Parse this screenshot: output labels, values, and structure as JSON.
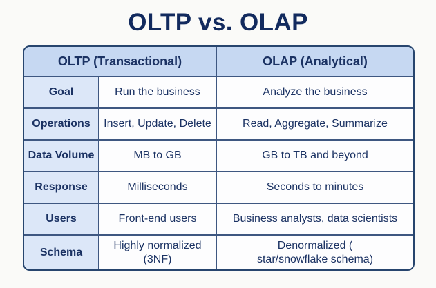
{
  "title": "OLTP vs. OLAP",
  "chart_data": {
    "type": "table",
    "title": "OLTP vs. OLAP",
    "columns": [
      "",
      "OLTP (Transactional)",
      "OLAP (Analytical)"
    ],
    "rows": [
      [
        "Goal",
        "Run the business",
        "Analyze the business"
      ],
      [
        "Operations",
        "Insert, Update, Delete",
        "Read, Aggregate, Summarize"
      ],
      [
        "Data Volume",
        "MB to GB",
        "GB to TB and beyond"
      ],
      [
        "Response",
        "Milliseconds",
        "Seconds to minutes"
      ],
      [
        "Users",
        "Front-end users",
        "Business analysts, data scientists"
      ],
      [
        "Schema",
        "Highly normalized (3NF)",
        "Denormalized (\nstar/snowflake schema)"
      ]
    ]
  },
  "colors": {
    "background": "#fafaf8",
    "title_text": "#122a5e",
    "text": "#1b3263",
    "outer_border": "#27456e",
    "grid_line": "#3e5781",
    "header_fill": "#c6d8f2",
    "label_fill": "#dce7f8",
    "cell_fill": "#fdfdfe"
  }
}
